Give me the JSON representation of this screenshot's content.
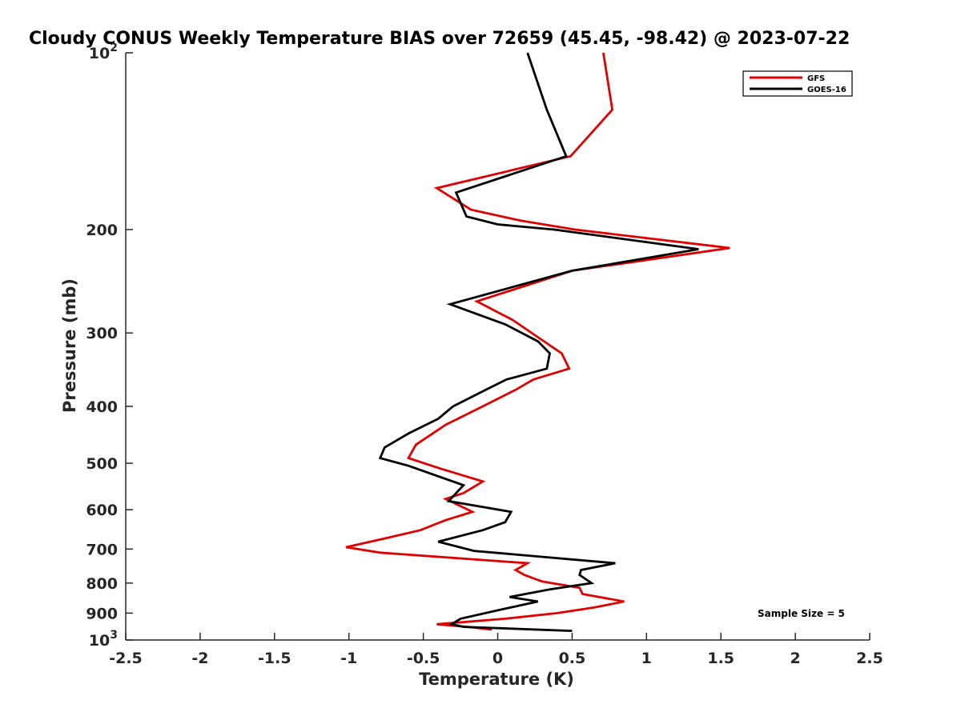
{
  "chart_data": {
    "type": "line",
    "title": "Cloudy CONUS Weekly Temperature BIAS over 72659 (45.45, -98.42) @ 2023-07-22",
    "xlabel": "Temperature (K)",
    "ylabel": "Pressure (mb)",
    "xlim": [
      -2.5,
      2.5
    ],
    "ylim": [
      100,
      1000
    ],
    "y_scale": "log",
    "y_reversed": true,
    "grid": false,
    "legend_position": "top-right",
    "x_ticks": [
      "-2.5",
      "-2",
      "-1.5",
      "-1",
      "-0.5",
      "0",
      "0.5",
      "1",
      "1.5",
      "2",
      "2.5"
    ],
    "x_tick_values": [
      -2.5,
      -2,
      -1.5,
      -1,
      -0.5,
      0,
      0.5,
      1,
      1.5,
      2,
      2.5
    ],
    "y_ticks": [
      {
        "value": 100,
        "base": "10",
        "exp": "2"
      },
      {
        "value": 200,
        "label": "200"
      },
      {
        "value": 300,
        "label": "300"
      },
      {
        "value": 400,
        "label": "400"
      },
      {
        "value": 500,
        "label": "500"
      },
      {
        "value": 600,
        "label": "600"
      },
      {
        "value": 700,
        "label": "700"
      },
      {
        "value": 800,
        "label": "800"
      },
      {
        "value": 900,
        "label": "900"
      },
      {
        "value": 1000,
        "base": "10",
        "exp": "3"
      }
    ],
    "annotation": "Sample Size = 5",
    "series": [
      {
        "name": "GFS",
        "color": "#e00000",
        "points": [
          {
            "x": 0.71,
            "p": 100
          },
          {
            "x": 0.77,
            "p": 125
          },
          {
            "x": 0.49,
            "p": 150
          },
          {
            "x": -0.41,
            "p": 170
          },
          {
            "x": -0.18,
            "p": 185
          },
          {
            "x": 0.15,
            "p": 193
          },
          {
            "x": 0.52,
            "p": 200
          },
          {
            "x": 1.56,
            "p": 215
          },
          {
            "x": 0.5,
            "p": 235
          },
          {
            "x": -0.14,
            "p": 265
          },
          {
            "x": 0.1,
            "p": 285
          },
          {
            "x": 0.27,
            "p": 305
          },
          {
            "x": 0.43,
            "p": 325
          },
          {
            "x": 0.48,
            "p": 345
          },
          {
            "x": 0.24,
            "p": 360
          },
          {
            "x": 0.12,
            "p": 375
          },
          {
            "x": -0.1,
            "p": 400
          },
          {
            "x": -0.35,
            "p": 430
          },
          {
            "x": -0.55,
            "p": 465
          },
          {
            "x": -0.6,
            "p": 490
          },
          {
            "x": -0.39,
            "p": 510
          },
          {
            "x": -0.1,
            "p": 537
          },
          {
            "x": -0.23,
            "p": 562
          },
          {
            "x": -0.35,
            "p": 575
          },
          {
            "x": -0.17,
            "p": 605
          },
          {
            "x": -0.35,
            "p": 625
          },
          {
            "x": -0.52,
            "p": 650
          },
          {
            "x": -0.74,
            "p": 670
          },
          {
            "x": -1.02,
            "p": 695
          },
          {
            "x": -0.79,
            "p": 710
          },
          {
            "x": 0.2,
            "p": 740
          },
          {
            "x": 0.12,
            "p": 760
          },
          {
            "x": 0.18,
            "p": 775
          },
          {
            "x": 0.3,
            "p": 795
          },
          {
            "x": 0.55,
            "p": 815
          },
          {
            "x": 0.57,
            "p": 835
          },
          {
            "x": 0.85,
            "p": 860
          },
          {
            "x": 0.65,
            "p": 880
          },
          {
            "x": 0.4,
            "p": 900
          },
          {
            "x": 0.05,
            "p": 920
          },
          {
            "x": -0.41,
            "p": 940
          },
          {
            "x": -0.2,
            "p": 950
          },
          {
            "x": -0.04,
            "p": 960
          }
        ]
      },
      {
        "name": "GOES-16",
        "color": "#000000",
        "points": [
          {
            "x": 0.2,
            "p": 100
          },
          {
            "x": 0.33,
            "p": 125
          },
          {
            "x": 0.46,
            "p": 150
          },
          {
            "x": -0.28,
            "p": 173
          },
          {
            "x": -0.21,
            "p": 190
          },
          {
            "x": 0.0,
            "p": 196
          },
          {
            "x": 0.38,
            "p": 200
          },
          {
            "x": 1.35,
            "p": 216
          },
          {
            "x": 0.5,
            "p": 235
          },
          {
            "x": -0.32,
            "p": 268
          },
          {
            "x": 0.05,
            "p": 290
          },
          {
            "x": 0.27,
            "p": 310
          },
          {
            "x": 0.35,
            "p": 325
          },
          {
            "x": 0.33,
            "p": 345
          },
          {
            "x": 0.06,
            "p": 360
          },
          {
            "x": -0.08,
            "p": 375
          },
          {
            "x": -0.3,
            "p": 400
          },
          {
            "x": -0.4,
            "p": 420
          },
          {
            "x": -0.6,
            "p": 445
          },
          {
            "x": -0.76,
            "p": 470
          },
          {
            "x": -0.79,
            "p": 490
          },
          {
            "x": -0.6,
            "p": 505
          },
          {
            "x": -0.23,
            "p": 545
          },
          {
            "x": -0.33,
            "p": 580
          },
          {
            "x": 0.09,
            "p": 605
          },
          {
            "x": 0.05,
            "p": 630
          },
          {
            "x": -0.1,
            "p": 650
          },
          {
            "x": -0.4,
            "p": 680
          },
          {
            "x": -0.16,
            "p": 705
          },
          {
            "x": 0.79,
            "p": 740
          },
          {
            "x": 0.56,
            "p": 760
          },
          {
            "x": 0.55,
            "p": 775
          },
          {
            "x": 0.63,
            "p": 800
          },
          {
            "x": 0.35,
            "p": 820
          },
          {
            "x": 0.08,
            "p": 845
          },
          {
            "x": 0.27,
            "p": 860
          },
          {
            "x": 0.0,
            "p": 890
          },
          {
            "x": -0.25,
            "p": 920
          },
          {
            "x": -0.31,
            "p": 940
          },
          {
            "x": -0.23,
            "p": 950
          },
          {
            "x": 0.5,
            "p": 965
          }
        ]
      }
    ]
  }
}
